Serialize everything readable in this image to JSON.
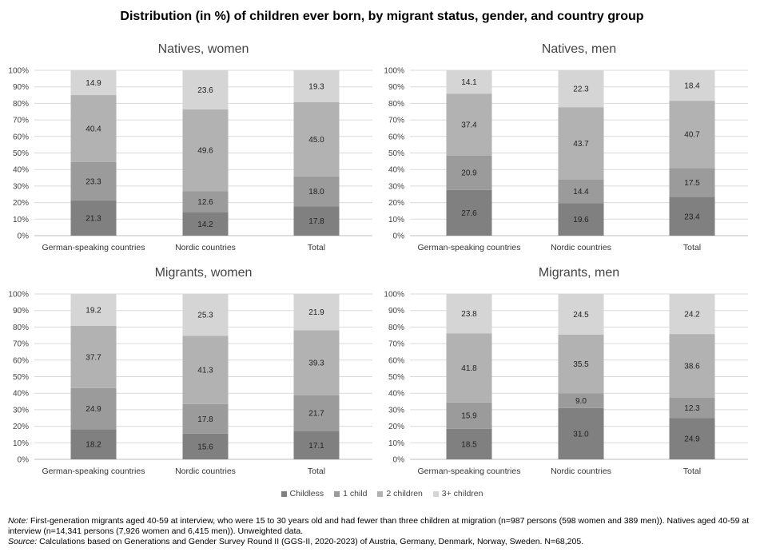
{
  "title": "Distribution (in %) of children ever born, by migrant status, gender, and country group",
  "legend": [
    "Childless",
    "1 child",
    "2 children",
    "3+ children"
  ],
  "colors": [
    "#808080",
    "#9b9b9b",
    "#b2b2b2",
    "#d5d5d5"
  ],
  "y_ticks": [
    "0%",
    "10%",
    "20%",
    "30%",
    "40%",
    "50%",
    "60%",
    "70%",
    "80%",
    "90%",
    "100%"
  ],
  "chart_data": [
    {
      "type": "bar",
      "stacked": true,
      "title": "Natives, women",
      "categories": [
        "German-speaking countries",
        "Nordic countries",
        "Total"
      ],
      "ylim": [
        0,
        100
      ],
      "series": [
        {
          "name": "Childless",
          "values": [
            21.3,
            14.2,
            17.8
          ]
        },
        {
          "name": "1 child",
          "values": [
            23.3,
            12.6,
            18.0
          ]
        },
        {
          "name": "2 children",
          "values": [
            40.4,
            49.6,
            45.0
          ]
        },
        {
          "name": "3+ children",
          "values": [
            14.9,
            23.6,
            19.3
          ]
        }
      ]
    },
    {
      "type": "bar",
      "stacked": true,
      "title": "Natives, men",
      "categories": [
        "German-speaking countries",
        "Nordic countries",
        "Total"
      ],
      "ylim": [
        0,
        100
      ],
      "series": [
        {
          "name": "Childless",
          "values": [
            27.6,
            19.6,
            23.4
          ]
        },
        {
          "name": "1 child",
          "values": [
            20.9,
            14.4,
            17.5
          ]
        },
        {
          "name": "2 children",
          "values": [
            37.4,
            43.7,
            40.7
          ]
        },
        {
          "name": "3+ children",
          "values": [
            14.1,
            22.3,
            18.4
          ]
        }
      ]
    },
    {
      "type": "bar",
      "stacked": true,
      "title": "Migrants, women",
      "categories": [
        "German-speaking countries",
        "Nordic countries",
        "Total"
      ],
      "ylim": [
        0,
        100
      ],
      "series": [
        {
          "name": "Childless",
          "values": [
            18.2,
            15.6,
            17.1
          ]
        },
        {
          "name": "1 child",
          "values": [
            24.9,
            17.8,
            21.7
          ]
        },
        {
          "name": "2 children",
          "values": [
            37.7,
            41.3,
            39.3
          ]
        },
        {
          "name": "3+ children",
          "values": [
            19.2,
            25.3,
            21.9
          ]
        }
      ]
    },
    {
      "type": "bar",
      "stacked": true,
      "title": "Migrants, men",
      "categories": [
        "German-speaking countries",
        "Nordic countries",
        "Total"
      ],
      "ylim": [
        0,
        100
      ],
      "series": [
        {
          "name": "Childless",
          "values": [
            18.5,
            31.0,
            24.9
          ]
        },
        {
          "name": "1 child",
          "values": [
            15.9,
            9.0,
            12.3
          ]
        },
        {
          "name": "2 children",
          "values": [
            41.8,
            35.5,
            38.6
          ]
        },
        {
          "name": "3+ children",
          "values": [
            23.8,
            24.5,
            24.2
          ]
        }
      ]
    }
  ],
  "notes": {
    "note_label": "Note:",
    "note_text": "First-generation migrants aged 40-59 at interview, who were 15 to 30 years old and had fewer than three children at migration (n=987 persons (598 women and 389 men)). Natives aged 40-59 at interview (n=14,341 persons (7,926 women and 6,415 men)). Unweighted data.",
    "source_label": "Source:",
    "source_text": "Calculations based on Generations and Gender Survey Round II (GGS-II, 2020-2023) of Austria, Germany, Denmark, Norway, Sweden. N=68,205."
  }
}
